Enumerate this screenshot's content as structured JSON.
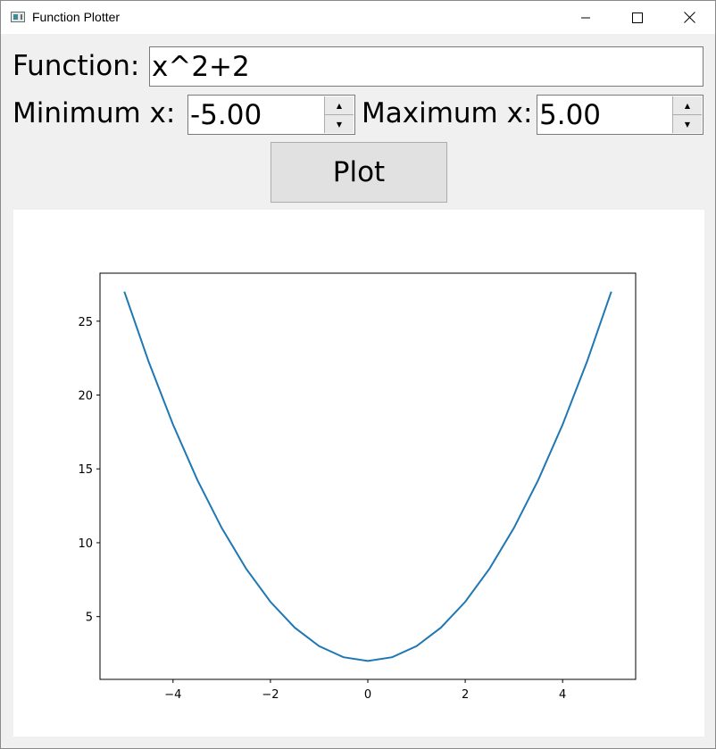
{
  "window": {
    "title": "Function Plotter",
    "icon": "app-icon",
    "controls": [
      "minimize-icon",
      "maximize-icon",
      "close-icon"
    ]
  },
  "form": {
    "function_label": "Function:",
    "function_value": "x^2+2",
    "min_label": "Minimum x:",
    "min_value": "-5.00",
    "max_label": "Maximum x:",
    "max_value": "5.00",
    "plot_button": "Plot"
  },
  "chart_data": {
    "type": "line",
    "title": "",
    "xlabel": "",
    "ylabel": "",
    "xlim": [
      -5.5,
      5.5
    ],
    "ylim": [
      0.75,
      28.25
    ],
    "xticks": [
      -4,
      -2,
      0,
      2,
      4
    ],
    "xtick_labels": [
      "−4",
      "−2",
      "0",
      "2",
      "4"
    ],
    "yticks": [
      5,
      10,
      15,
      20,
      25
    ],
    "ytick_labels": [
      "5",
      "10",
      "15",
      "20",
      "25"
    ],
    "grid": false,
    "line_color": "#1f77b4",
    "series": [
      {
        "x": [
          -5,
          -4.5,
          -4,
          -3.5,
          -3,
          -2.5,
          -2,
          -1.5,
          -1,
          -0.5,
          0,
          0.5,
          1,
          1.5,
          2,
          2.5,
          3,
          3.5,
          4,
          4.5,
          5
        ],
        "y": [
          27,
          22.25,
          18,
          14.25,
          11,
          8.25,
          6,
          4.25,
          3,
          2.25,
          2,
          2.25,
          3,
          4.25,
          6,
          8.25,
          11,
          14.25,
          18,
          22.25,
          27
        ]
      }
    ]
  }
}
